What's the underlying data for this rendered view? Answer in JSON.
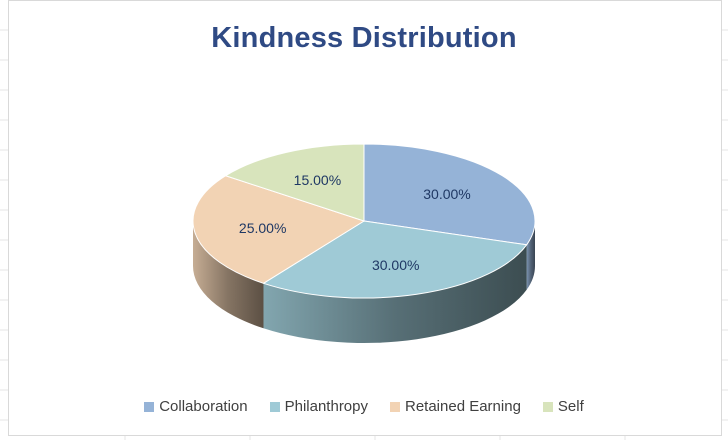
{
  "chart_data": {
    "type": "pie",
    "title": "Kindness Distribution",
    "categories": [
      "Collaboration",
      "Philanthropy",
      "Retained Earning",
      "Self"
    ],
    "values": [
      30.0,
      30.0,
      25.0,
      15.0
    ],
    "data_labels": [
      "30.00%",
      "30.00%",
      "25.00%",
      "15.00%"
    ],
    "colors": [
      "#95b3d7",
      "#9fcad6",
      "#f2d3b4",
      "#d8e4bc"
    ],
    "style": "3d",
    "legend_position": "bottom"
  }
}
